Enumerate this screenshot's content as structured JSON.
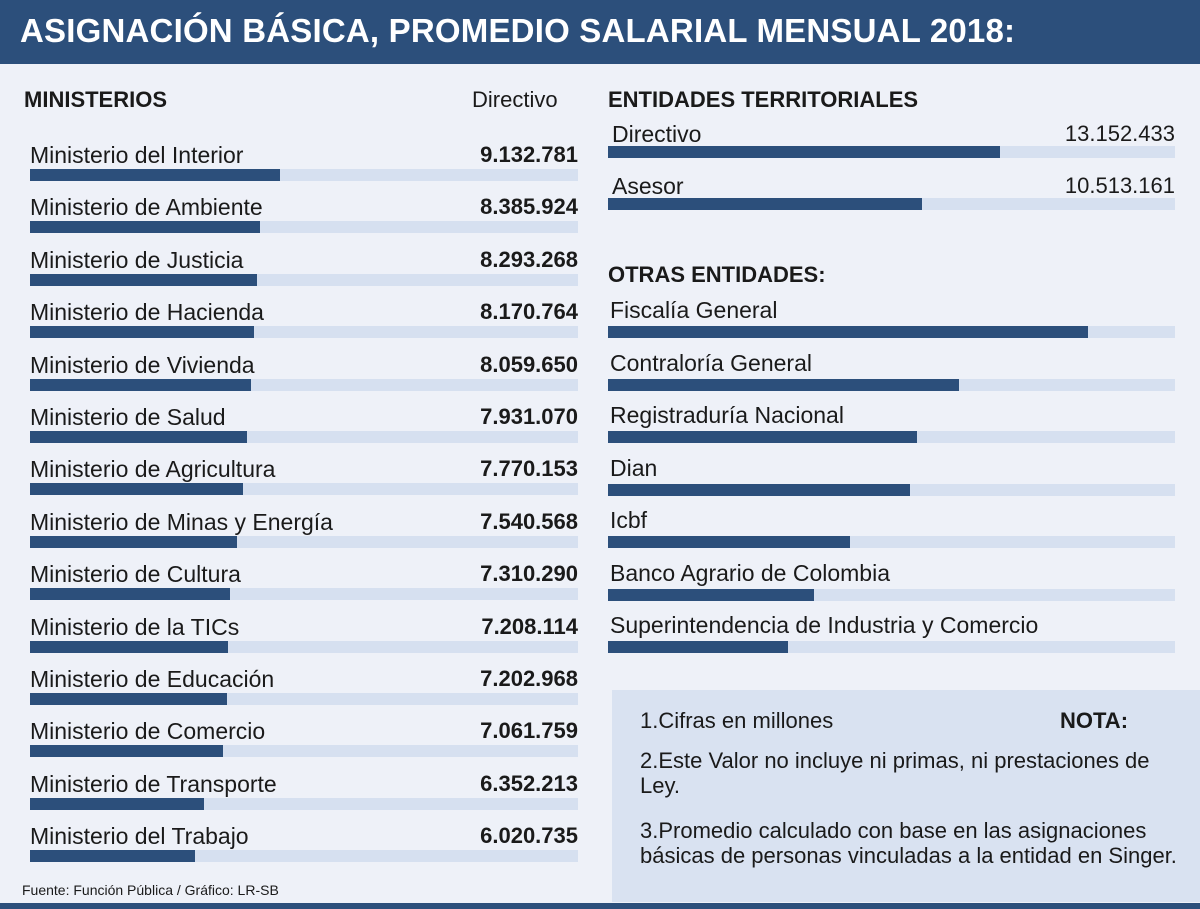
{
  "title": "ASIGNACIÓN BÁSICA, PROMEDIO SALARIAL MENSUAL 2018:",
  "chart_data": [
    {
      "type": "bar",
      "orientation": "horizontal",
      "title": "MINISTERIOS",
      "series_label": "Directivo",
      "categories": [
        "Ministerio del Interior",
        "Ministerio de Ambiente",
        "Ministerio de Justicia",
        "Ministerio de Hacienda",
        "Ministerio de Vivienda",
        "Ministerio de Salud",
        "Ministerio de Agricultura",
        "Ministerio de Minas y Energía",
        "Ministerio de Cultura",
        "Ministerio de la TICs",
        "Ministerio de Educación",
        "Ministerio de Comercio",
        "Ministerio de Transporte",
        "Ministerio del Trabajo"
      ],
      "value_labels": [
        "9.132.781",
        "8.385.924",
        "8.293.268",
        "8.170.764",
        "8.059.650",
        "7.931.070",
        "7.770.153",
        "7.540.568",
        "7.310.290",
        "7.208.114",
        "7.202.968",
        "7.061.759",
        "6.352.213",
        "6.020.735"
      ],
      "values": [
        9132781,
        8385924,
        8293268,
        8170764,
        8059650,
        7931070,
        7770153,
        7540568,
        7310290,
        7208114,
        7202968,
        7061759,
        6352213,
        6020735
      ],
      "xlim": [
        0,
        20000000
      ]
    },
    {
      "type": "bar",
      "orientation": "horizontal",
      "title": "ENTIDADES TERRITORIALES",
      "categories": [
        "Directivo",
        "Asesor"
      ],
      "value_labels": [
        "13.152.433",
        "10.513.161"
      ],
      "values": [
        13152433,
        10513161
      ],
      "xlim": [
        0,
        19000000
      ]
    },
    {
      "type": "bar",
      "orientation": "horizontal",
      "title": "OTRAS ENTIDADES:",
      "categories": [
        "Fiscalía General",
        "Contraloría General",
        "Registraduría Nacional",
        "Dian",
        "Icbf",
        "Banco Agrario de Colombia",
        "Superintendencia de Industria y Comercio"
      ],
      "values": [
        16000000,
        11700000,
        10300000,
        10050000,
        8050000,
        6850000,
        6000000
      ],
      "xlim": [
        0,
        18900000
      ]
    }
  ],
  "notes": {
    "title": "NOTA:",
    "items": [
      "1.Cifras en millones",
      "2.Este Valor no incluye ni primas, ni prestaciones de Ley.",
      "3.Promedio calculado con base en las asignaciones básicas de personas vinculadas a la entidad en Singer."
    ]
  },
  "source": "Fuente: Función Pública / Gráfico: LR-SB"
}
